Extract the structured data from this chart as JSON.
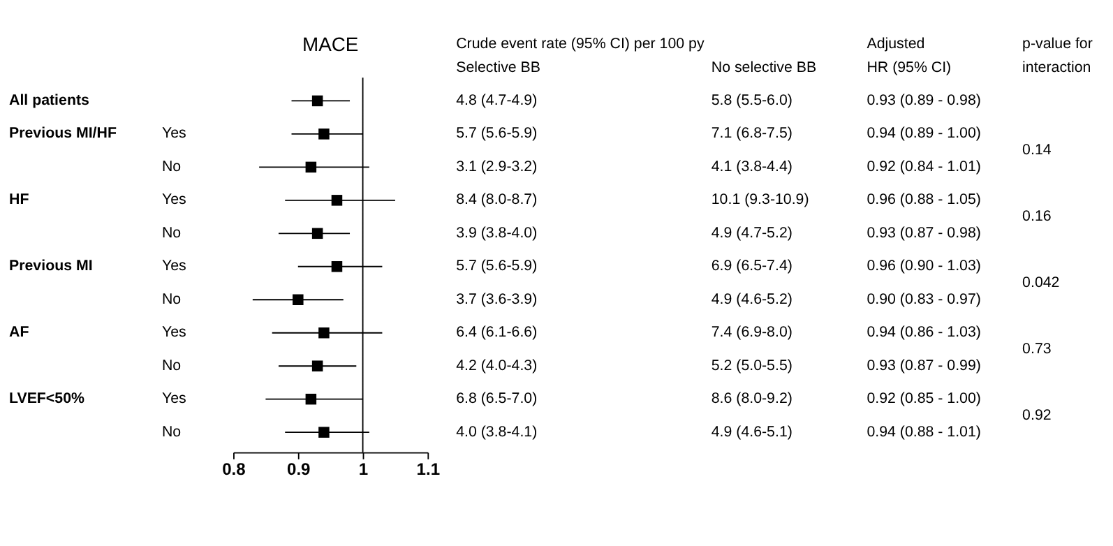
{
  "chart_data": {
    "type": "scatter",
    "orientation": "horizontal",
    "title": "MACE",
    "categories": [
      null,
      "Yes",
      "No",
      "Yes",
      "No",
      "Yes",
      "No",
      "Yes",
      "No",
      "Yes",
      "No"
    ],
    "values": [
      0.93,
      0.94,
      0.92,
      0.96,
      0.93,
      0.96,
      0.9,
      0.94,
      0.93,
      0.92,
      0.94
    ],
    "errors": [
      [
        0.89,
        0.98
      ],
      [
        0.89,
        1.0
      ],
      [
        0.84,
        1.01
      ],
      [
        0.88,
        1.05
      ],
      [
        0.87,
        0.98
      ],
      [
        0.9,
        1.03
      ],
      [
        0.83,
        0.97
      ],
      [
        0.86,
        1.03
      ],
      [
        0.87,
        0.99
      ],
      [
        0.85,
        1.0
      ],
      [
        0.88,
        1.01
      ]
    ],
    "value_labels": [
      "0.93 (0.89 - 0.98)",
      "0.94 (0.89 - 1.00)",
      "0.92 (0.84 - 1.01)",
      "0.96 (0.88 - 1.05)",
      "0.93 (0.87 - 0.98)",
      "0.96 (0.90 - 1.03)",
      "0.90 (0.83 - 0.97)",
      "0.94 (0.86 - 1.03)",
      "0.93 (0.87 - 0.99)",
      "0.92 (0.85 - 1.00)",
      "0.94 (0.88 - 1.01)"
    ],
    "color": "#000000",
    "marker": "square",
    "grid": false,
    "xlim": [
      0.8,
      1.1
    ],
    "xticks": [
      0.8,
      0.9,
      {
        "value": 1.0,
        "label": "1"
      },
      1.1
    ],
    "ref_lines": [
      {
        "axis": "x",
        "value": 1.0,
        "label": null,
        "color": "#000000"
      }
    ],
    "annotations": [
      "All patients",
      "Previous MI/HF",
      "HF",
      "Previous MI",
      "AF",
      "LVEF<50%",
      "Crude event rate (95% CI) per 100 py",
      "Selective BB",
      "No selective BB",
      "Adjusted",
      "HR (95% CI)",
      "p-value for",
      "interaction",
      "4.8 (4.7-4.9)",
      "5.7 (5.6-5.9)",
      "3.1 (2.9-3.2)",
      "8.4 (8.0-8.7)",
      "3.9 (3.8-4.0)",
      "5.7 (5.6-5.9)",
      "3.7 (3.6-3.9)",
      "6.4 (6.1-6.6)",
      "4.2 (4.0-4.3)",
      "6.8 (6.5-7.0)",
      "4.0 (3.8-4.1)",
      "5.8 (5.5-6.0)",
      "7.1 (6.8-7.5)",
      "4.1 (3.8-4.4)",
      "10.1 (9.3-10.9)",
      "4.9 (4.7-5.2)",
      "6.9 (6.5-7.4)",
      "4.9 (4.6-5.2)",
      "7.4 (6.9-8.0)",
      "5.2 (5.0-5.5)",
      "8.6 (8.0-9.2)",
      "4.9 (4.6-5.1)",
      "0.14",
      "0.16",
      "0.042",
      "0.73",
      "0.92"
    ]
  }
}
